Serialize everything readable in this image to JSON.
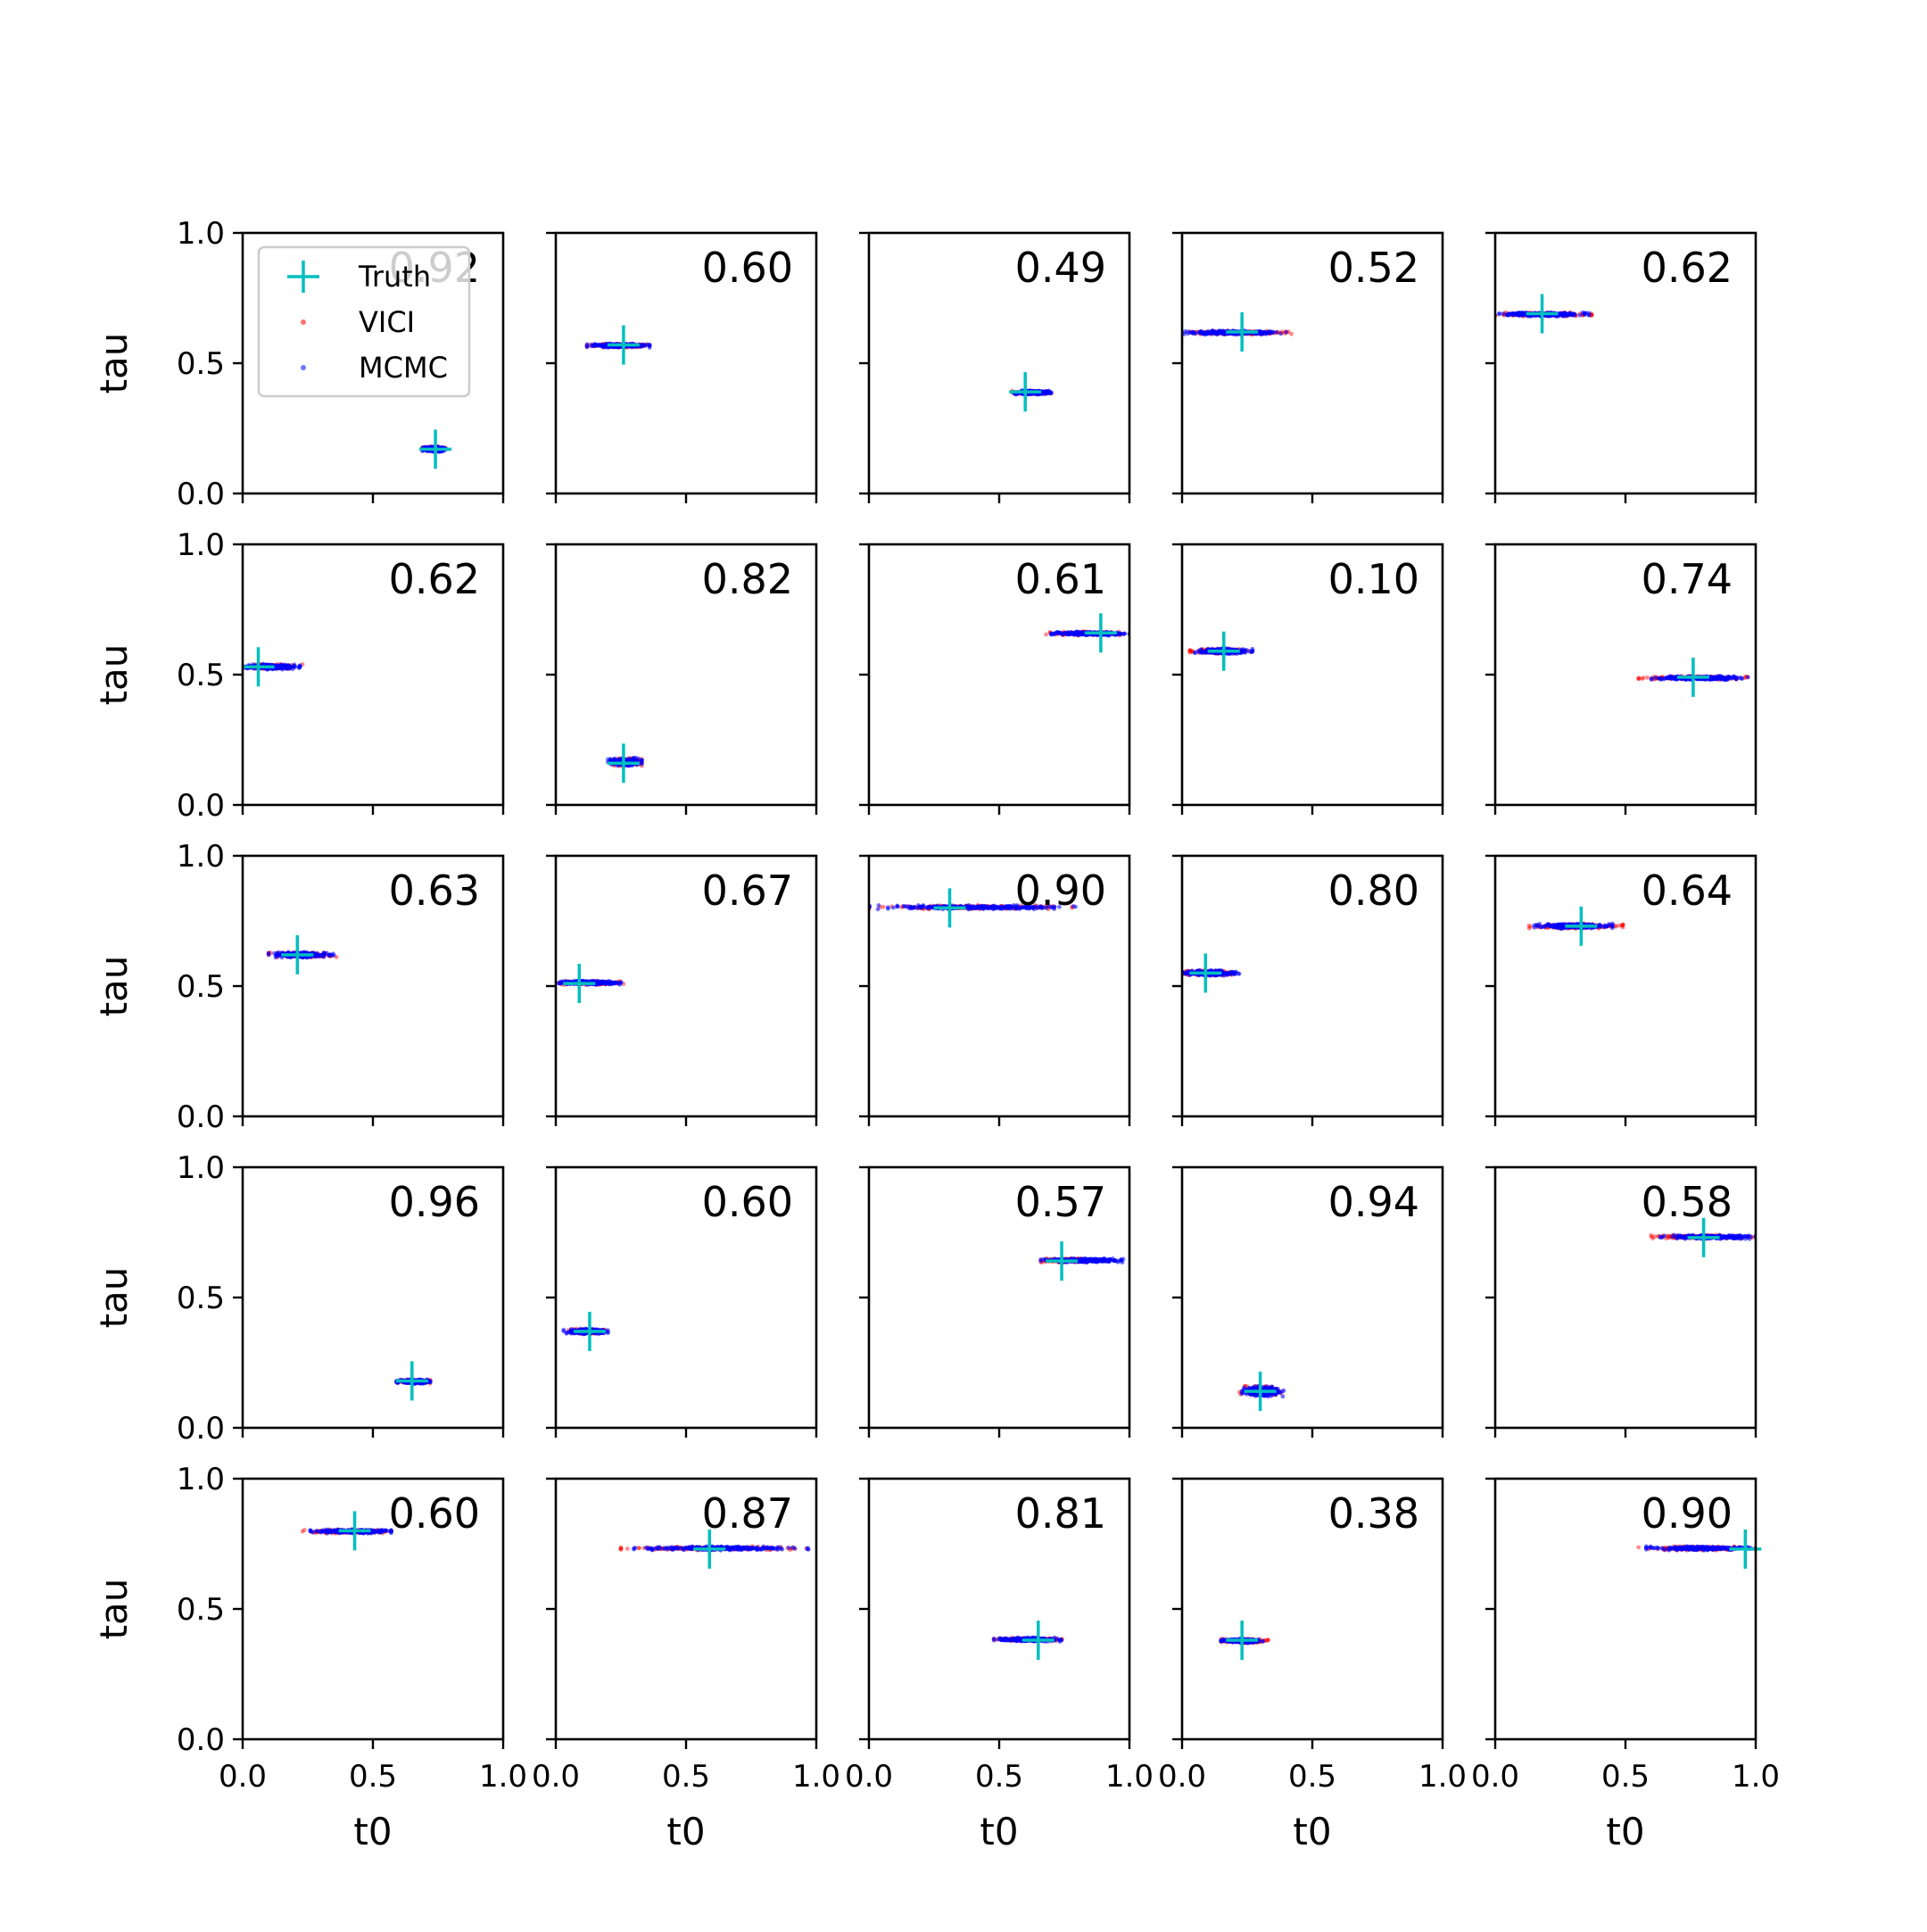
{
  "figure": {
    "colors": {
      "truth": "#00bfbf",
      "vici": "#ff0000",
      "mcmc": "#0000ff",
      "axes": "#000000"
    }
  },
  "legend": {
    "placement": "top-left of first panel",
    "entries": [
      {
        "label": "Truth",
        "marker": "plus",
        "color": "#00bfbf"
      },
      {
        "label": "VICI",
        "marker": "dot",
        "color": "#ff0000"
      },
      {
        "label": "MCMC",
        "marker": "dot",
        "color": "#0000ff"
      }
    ]
  },
  "chart_data": {
    "type": "scatter",
    "grid_rows": 5,
    "grid_cols": 5,
    "xlabel": "t0",
    "ylabel": "tau",
    "xlim": [
      0,
      1
    ],
    "ylim": [
      0,
      1
    ],
    "xticks": [
      "0.0",
      "0.5",
      "1.0"
    ],
    "yticks": [
      "0.0",
      "0.5",
      "1.0"
    ],
    "grid": false,
    "panels": [
      {
        "score": "0.92",
        "truth": [
          0.74,
          0.17
        ],
        "mcmc": [
          0.69,
          0.78,
          0.16,
          0.18
        ],
        "vici": [
          0.69,
          0.78,
          0.165,
          0.18
        ]
      },
      {
        "score": "0.60",
        "truth": [
          0.26,
          0.57
        ],
        "mcmc": [
          0.12,
          0.36,
          0.56,
          0.575
        ],
        "vici": [
          0.12,
          0.38,
          0.56,
          0.575
        ]
      },
      {
        "score": "0.49",
        "truth": [
          0.6,
          0.39
        ],
        "mcmc": [
          0.55,
          0.7,
          0.38,
          0.395
        ],
        "vici": [
          0.55,
          0.7,
          0.38,
          0.395
        ]
      },
      {
        "score": "0.52",
        "truth": [
          0.23,
          0.62
        ],
        "mcmc": [
          0.0,
          0.4,
          0.61,
          0.625
        ],
        "vici": [
          0.0,
          0.43,
          0.61,
          0.625
        ]
      },
      {
        "score": "0.62",
        "truth": [
          0.18,
          0.69
        ],
        "mcmc": [
          0.0,
          0.36,
          0.68,
          0.695
        ],
        "vici": [
          0.0,
          0.37,
          0.68,
          0.695
        ]
      },
      {
        "score": "0.62",
        "truth": [
          0.06,
          0.53
        ],
        "mcmc": [
          0.0,
          0.22,
          0.52,
          0.54
        ],
        "vici": [
          0.0,
          0.23,
          0.52,
          0.54
        ]
      },
      {
        "score": "0.82",
        "truth": [
          0.26,
          0.16
        ],
        "mcmc": [
          0.2,
          0.33,
          0.15,
          0.18
        ],
        "vici": [
          0.2,
          0.33,
          0.15,
          0.18
        ]
      },
      {
        "score": "0.61",
        "truth": [
          0.89,
          0.66
        ],
        "mcmc": [
          0.7,
          1.0,
          0.65,
          0.665
        ],
        "vici": [
          0.68,
          1.0,
          0.65,
          0.665
        ]
      },
      {
        "score": "0.10",
        "truth": [
          0.16,
          0.59
        ],
        "mcmc": [
          0.05,
          0.27,
          0.58,
          0.6
        ],
        "vici": [
          0.03,
          0.27,
          0.58,
          0.6
        ]
      },
      {
        "score": "0.74",
        "truth": [
          0.76,
          0.49
        ],
        "mcmc": [
          0.6,
          0.97,
          0.48,
          0.495
        ],
        "vici": [
          0.55,
          0.97,
          0.48,
          0.495
        ]
      },
      {
        "score": "0.63",
        "truth": [
          0.21,
          0.62
        ],
        "mcmc": [
          0.1,
          0.35,
          0.61,
          0.63
        ],
        "vici": [
          0.1,
          0.36,
          0.61,
          0.63
        ]
      },
      {
        "score": "0.67",
        "truth": [
          0.09,
          0.51
        ],
        "mcmc": [
          0.01,
          0.25,
          0.505,
          0.52
        ],
        "vici": [
          0.01,
          0.26,
          0.505,
          0.52
        ]
      },
      {
        "score": "0.90",
        "truth": [
          0.31,
          0.8
        ],
        "mcmc": [
          0.0,
          0.8,
          0.795,
          0.81
        ],
        "vici": [
          0.0,
          0.78,
          0.795,
          0.81
        ]
      },
      {
        "score": "0.80",
        "truth": [
          0.09,
          0.55
        ],
        "mcmc": [
          0.0,
          0.22,
          0.54,
          0.56
        ],
        "vici": [
          0.0,
          0.19,
          0.54,
          0.56
        ]
      },
      {
        "score": "0.64",
        "truth": [
          0.33,
          0.73
        ],
        "mcmc": [
          0.15,
          0.45,
          0.72,
          0.74
        ],
        "vici": [
          0.13,
          0.49,
          0.72,
          0.74
        ]
      },
      {
        "score": "0.96",
        "truth": [
          0.65,
          0.18
        ],
        "mcmc": [
          0.59,
          0.72,
          0.17,
          0.185
        ],
        "vici": [
          0.59,
          0.72,
          0.17,
          0.185
        ]
      },
      {
        "score": "0.60",
        "truth": [
          0.13,
          0.37
        ],
        "mcmc": [
          0.03,
          0.2,
          0.36,
          0.38
        ],
        "vici": [
          0.03,
          0.21,
          0.36,
          0.38
        ]
      },
      {
        "score": "0.57",
        "truth": [
          0.74,
          0.64
        ],
        "mcmc": [
          0.66,
          0.98,
          0.635,
          0.65
        ],
        "vici": [
          0.66,
          0.9,
          0.635,
          0.65
        ]
      },
      {
        "score": "0.94",
        "truth": [
          0.3,
          0.14
        ],
        "mcmc": [
          0.23,
          0.39,
          0.12,
          0.16
        ],
        "vici": [
          0.22,
          0.38,
          0.12,
          0.16
        ]
      },
      {
        "score": "0.58",
        "truth": [
          0.8,
          0.73
        ],
        "mcmc": [
          0.63,
          1.0,
          0.725,
          0.74
        ],
        "vici": [
          0.58,
          1.0,
          0.725,
          0.74
        ]
      },
      {
        "score": "0.60",
        "truth": [
          0.43,
          0.8
        ],
        "mcmc": [
          0.26,
          0.57,
          0.79,
          0.805
        ],
        "vici": [
          0.23,
          0.57,
          0.79,
          0.805
        ]
      },
      {
        "score": "0.87",
        "truth": [
          0.59,
          0.73
        ],
        "mcmc": [
          0.3,
          0.97,
          0.725,
          0.74
        ],
        "vici": [
          0.25,
          0.97,
          0.725,
          0.74
        ]
      },
      {
        "score": "0.81",
        "truth": [
          0.65,
          0.38
        ],
        "mcmc": [
          0.48,
          0.74,
          0.375,
          0.39
        ],
        "vici": [
          0.48,
          0.74,
          0.375,
          0.39
        ]
      },
      {
        "score": "0.38",
        "truth": [
          0.23,
          0.38
        ],
        "mcmc": [
          0.15,
          0.31,
          0.37,
          0.385
        ],
        "vici": [
          0.15,
          0.33,
          0.37,
          0.385
        ]
      },
      {
        "score": "0.90",
        "truth": [
          0.96,
          0.73
        ],
        "mcmc": [
          0.58,
          1.0,
          0.725,
          0.74
        ],
        "vici": [
          0.55,
          1.0,
          0.725,
          0.74
        ]
      }
    ]
  }
}
